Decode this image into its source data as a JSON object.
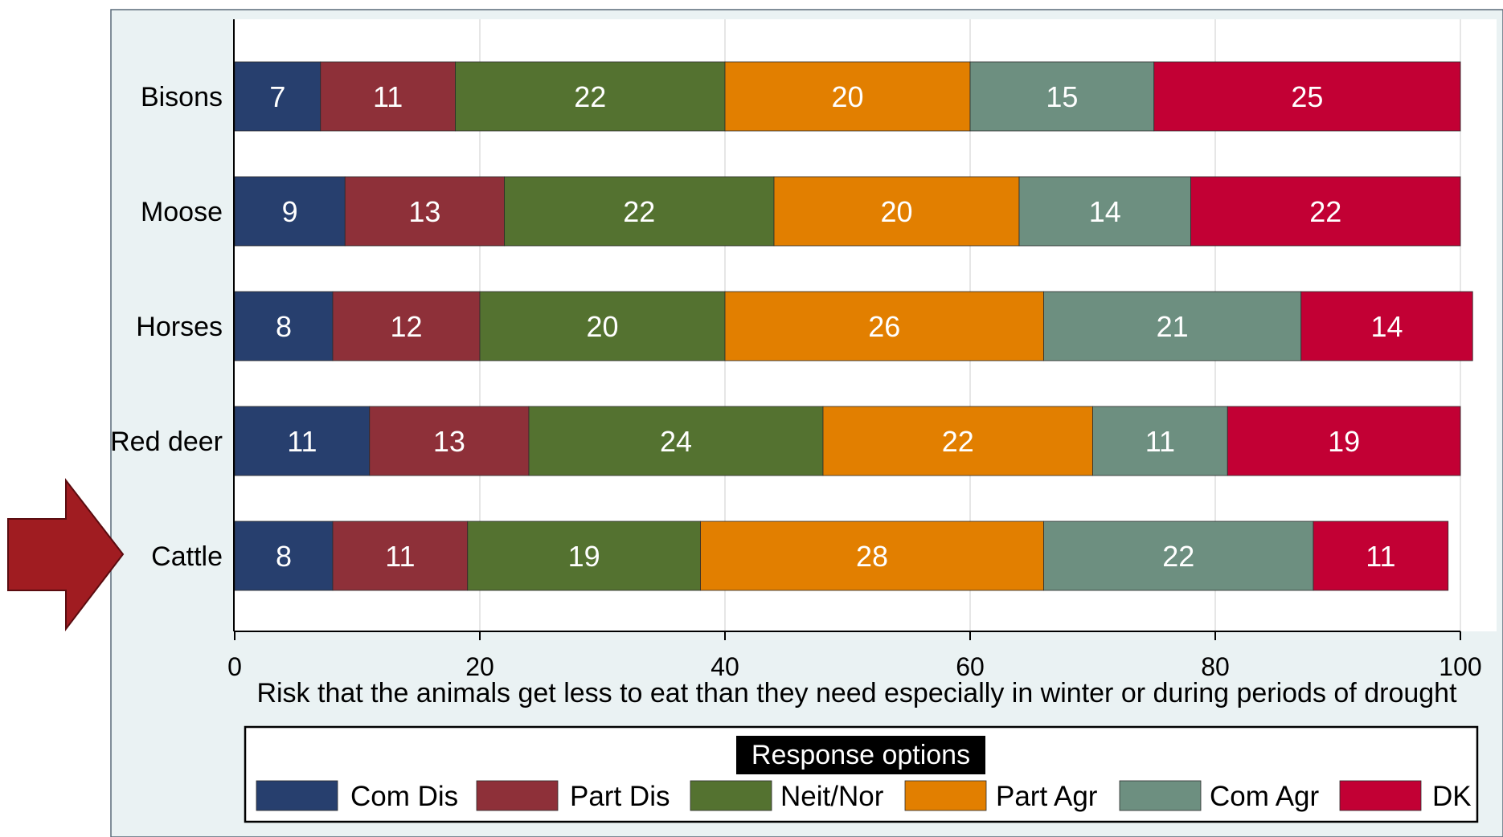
{
  "chart_data": {
    "type": "bar",
    "orientation": "horizontal",
    "stacked": true,
    "categories": [
      "Bisons",
      "Moose",
      "Horses",
      "Red deer",
      "Cattle"
    ],
    "series": [
      {
        "name": "Com Dis",
        "color": "#273f6e",
        "values": [
          7,
          9,
          8,
          11,
          8
        ]
      },
      {
        "name": "Part Dis",
        "color": "#8e3039",
        "values": [
          11,
          13,
          12,
          13,
          11
        ]
      },
      {
        "name": "Neit/Nor",
        "color": "#547230",
        "values": [
          22,
          22,
          20,
          24,
          19
        ]
      },
      {
        "name": "Part Agr",
        "color": "#e27f00",
        "values": [
          20,
          20,
          26,
          22,
          28
        ]
      },
      {
        "name": "Com Agr",
        "color": "#6d8f80",
        "values": [
          15,
          14,
          21,
          11,
          22
        ]
      },
      {
        "name": "DK",
        "color": "#c20034",
        "values": [
          25,
          22,
          14,
          19,
          11
        ]
      }
    ],
    "xlabel": "Risk that the animals get less to eat than they need especially in winter or during periods of drought",
    "xlim": [
      0,
      100
    ],
    "xticks": [
      "0",
      "20",
      "40",
      "60",
      "80",
      "100"
    ],
    "grid": true,
    "legend": {
      "title": "Response options",
      "position": "bottom"
    },
    "highlight": {
      "category": "Cattle",
      "marker": "arrow-icon",
      "color": "#a01c21"
    }
  }
}
